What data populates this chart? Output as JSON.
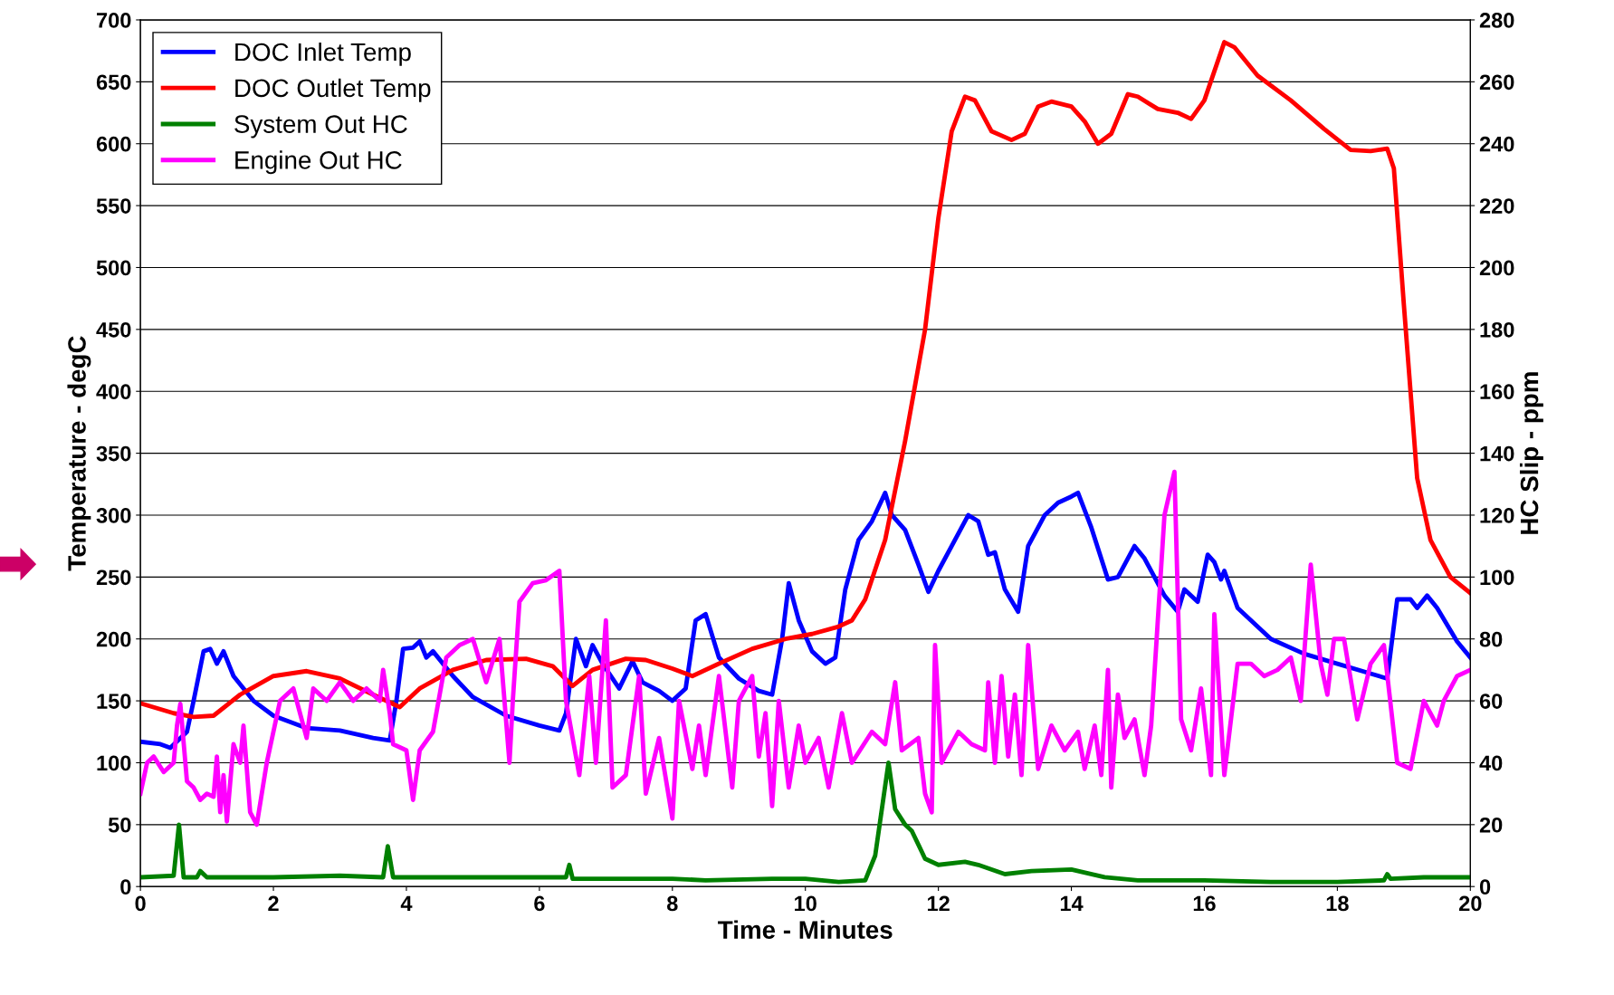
{
  "chart_data": {
    "type": "line",
    "xlabel": "Time - Minutes",
    "ylabel": "Temperature - degC",
    "y2label": "HC Slip - ppm",
    "xlim": [
      0,
      20
    ],
    "xticks": [
      0,
      2,
      4,
      6,
      8,
      10,
      12,
      14,
      16,
      18,
      20
    ],
    "ylim": [
      0,
      700
    ],
    "yticks": [
      0,
      50,
      100,
      150,
      200,
      250,
      300,
      350,
      400,
      450,
      500,
      550,
      600,
      650,
      700
    ],
    "y2lim": [
      0,
      280
    ],
    "y2ticks": [
      0,
      20,
      40,
      60,
      80,
      100,
      120,
      140,
      160,
      180,
      200,
      220,
      240,
      260,
      280
    ],
    "grid": "y",
    "legend": "top left",
    "marker": "none",
    "line_style": "solid",
    "series": [
      {
        "name": "DOC Inlet Temp",
        "color": "#0000ff",
        "x": [
          0,
          0.3,
          0.45,
          0.7,
          0.8,
          0.95,
          1.05,
          1.15,
          1.25,
          1.4,
          1.7,
          2,
          2.5,
          3,
          3.5,
          3.75,
          3.85,
          3.95,
          4.1,
          4.2,
          4.3,
          4.4,
          4.7,
          5.0,
          5.5,
          6.0,
          6.3,
          6.4,
          6.55,
          6.7,
          6.8,
          6.95,
          7.2,
          7.4,
          7.55,
          7.8,
          8.0,
          8.2,
          8.35,
          8.5,
          8.7,
          9.0,
          9.3,
          9.5,
          9.65,
          9.75,
          9.9,
          10.1,
          10.3,
          10.45,
          10.6,
          10.8,
          11.0,
          11.2,
          11.3,
          11.5,
          11.7,
          11.85,
          12.0,
          12.2,
          12.45,
          12.6,
          12.75,
          12.85,
          13.0,
          13.2,
          13.35,
          13.6,
          13.8,
          14.0,
          14.1,
          14.3,
          14.55,
          14.7,
          14.95,
          15.1,
          15.4,
          15.6,
          15.7,
          15.9,
          16.05,
          16.15,
          16.25,
          16.3,
          16.5,
          17.0,
          17.5,
          18.0,
          18.5,
          18.75,
          18.9,
          19.1,
          19.2,
          19.35,
          19.5,
          19.8,
          20
        ],
        "values": [
          117,
          115,
          112,
          125,
          150,
          190,
          192,
          180,
          190,
          170,
          150,
          138,
          128,
          126,
          120,
          118,
          150,
          192,
          193,
          198,
          185,
          190,
          170,
          153,
          138,
          130,
          126,
          140,
          200,
          178,
          195,
          180,
          160,
          182,
          165,
          158,
          150,
          160,
          215,
          220,
          185,
          168,
          158,
          155,
          200,
          245,
          215,
          190,
          180,
          185,
          240,
          280,
          295,
          318,
          300,
          288,
          260,
          238,
          255,
          275,
          300,
          295,
          268,
          270,
          240,
          222,
          275,
          300,
          310,
          315,
          318,
          290,
          248,
          250,
          275,
          265,
          235,
          222,
          240,
          230,
          268,
          262,
          248,
          255,
          225,
          200,
          188,
          180,
          172,
          168,
          232,
          232,
          225,
          235,
          225,
          198,
          185
        ]
      },
      {
        "name": "DOC Outlet Temp",
        "color": "#ff0000",
        "x": [
          0,
          0.5,
          0.8,
          1.1,
          1.5,
          2,
          2.5,
          3,
          3.5,
          3.9,
          4.2,
          4.7,
          5.2,
          5.8,
          6.2,
          6.5,
          6.8,
          7.3,
          7.6,
          8,
          8.3,
          8.7,
          9.2,
          9.7,
          10.1,
          10.5,
          10.7,
          10.9,
          11.2,
          11.5,
          11.8,
          12.0,
          12.2,
          12.4,
          12.55,
          12.8,
          13.1,
          13.3,
          13.5,
          13.7,
          14.0,
          14.2,
          14.4,
          14.6,
          14.85,
          15.0,
          15.3,
          15.6,
          15.8,
          16.0,
          16.3,
          16.45,
          16.8,
          17.3,
          17.8,
          18.2,
          18.5,
          18.75,
          18.85,
          19.0,
          19.2,
          19.4,
          19.7,
          20
        ],
        "values": [
          148,
          140,
          137,
          138,
          155,
          170,
          174,
          168,
          155,
          145,
          160,
          175,
          183,
          184,
          178,
          162,
          175,
          184,
          183,
          176,
          170,
          180,
          192,
          200,
          204,
          210,
          215,
          232,
          280,
          360,
          450,
          540,
          610,
          638,
          635,
          610,
          603,
          608,
          630,
          634,
          630,
          618,
          600,
          608,
          640,
          638,
          628,
          625,
          620,
          635,
          682,
          678,
          655,
          635,
          612,
          595,
          594,
          596,
          580,
          470,
          330,
          280,
          250,
          237
        ]
      },
      {
        "name": "System Out HC",
        "color": "#008000",
        "axis": "y2",
        "x": [
          0,
          0.5,
          0.58,
          0.65,
          0.85,
          0.9,
          1,
          2,
          3,
          3.65,
          3.72,
          3.8,
          4,
          5,
          6,
          6.4,
          6.45,
          6.5,
          8,
          8.5,
          9.5,
          10,
          10.5,
          10.9,
          11.05,
          11.25,
          11.35,
          11.5,
          11.6,
          11.8,
          12,
          12.4,
          12.6,
          13,
          13.4,
          14,
          14.5,
          15,
          16,
          17,
          18,
          18.7,
          18.75,
          18.8,
          19.3,
          20
        ],
        "values": [
          3,
          3.5,
          20,
          3,
          3,
          5,
          3,
          3,
          3.5,
          3,
          13,
          3,
          3,
          3,
          3,
          3,
          7,
          2.5,
          2.5,
          2,
          2.5,
          2.5,
          1.5,
          2,
          10,
          40,
          25,
          20,
          18,
          9,
          7,
          8,
          7,
          4,
          5,
          5.5,
          3,
          2,
          2,
          1.5,
          1.5,
          2,
          4,
          2.5,
          3,
          3
        ]
      },
      {
        "name": "Engine Out HC",
        "color": "#ff00ff",
        "axis": "y2",
        "x": [
          0,
          0.1,
          0.2,
          0.35,
          0.5,
          0.55,
          0.6,
          0.7,
          0.8,
          0.9,
          1.0,
          1.1,
          1.15,
          1.2,
          1.25,
          1.3,
          1.4,
          1.5,
          1.55,
          1.65,
          1.75,
          1.9,
          2.1,
          2.3,
          2.5,
          2.6,
          2.8,
          3.0,
          3.2,
          3.4,
          3.6,
          3.65,
          3.75,
          3.8,
          4.0,
          4.1,
          4.2,
          4.4,
          4.6,
          4.8,
          5.0,
          5.2,
          5.4,
          5.55,
          5.6,
          5.7,
          5.9,
          6.1,
          6.3,
          6.4,
          6.6,
          6.75,
          6.85,
          7.0,
          7.1,
          7.3,
          7.5,
          7.6,
          7.8,
          8.0,
          8.1,
          8.3,
          8.4,
          8.5,
          8.7,
          8.9,
          9.0,
          9.2,
          9.3,
          9.4,
          9.5,
          9.6,
          9.75,
          9.9,
          10.0,
          10.2,
          10.35,
          10.55,
          10.7,
          11.0,
          11.2,
          11.35,
          11.45,
          11.7,
          11.8,
          11.9,
          11.95,
          12.05,
          12.3,
          12.5,
          12.7,
          12.75,
          12.85,
          12.95,
          13.05,
          13.15,
          13.25,
          13.35,
          13.5,
          13.7,
          13.9,
          14.1,
          14.2,
          14.35,
          14.45,
          14.55,
          14.6,
          14.7,
          14.8,
          14.95,
          15.1,
          15.2,
          15.4,
          15.55,
          15.65,
          15.8,
          15.95,
          16.1,
          16.15,
          16.3,
          16.5,
          16.7,
          16.9,
          17.1,
          17.3,
          17.45,
          17.6,
          17.75,
          17.85,
          17.95,
          18.1,
          18.3,
          18.5,
          18.7,
          18.9,
          19.1,
          19.3,
          19.5,
          19.6,
          19.8,
          20
        ],
        "values": [
          30,
          40,
          42,
          37,
          40,
          52,
          59,
          34,
          32,
          28,
          30,
          29,
          42,
          24,
          36,
          21,
          46,
          40,
          52,
          24,
          20,
          40,
          60,
          64,
          48,
          64,
          60,
          66,
          60,
          64,
          60,
          70,
          56,
          46,
          44,
          28,
          44,
          50,
          74,
          78,
          80,
          66,
          80,
          40,
          60,
          92,
          98,
          99,
          102,
          60,
          36,
          68,
          40,
          86,
          32,
          36,
          68,
          30,
          48,
          22,
          60,
          38,
          52,
          36,
          68,
          32,
          60,
          68,
          42,
          56,
          26,
          60,
          32,
          52,
          40,
          48,
          32,
          56,
          40,
          50,
          46,
          66,
          44,
          48,
          30,
          24,
          78,
          40,
          50,
          46,
          44,
          66,
          40,
          68,
          42,
          62,
          36,
          78,
          38,
          52,
          44,
          50,
          38,
          52,
          36,
          70,
          32,
          62,
          48,
          54,
          36,
          52,
          120,
          134,
          54,
          44,
          64,
          36,
          88,
          36,
          72,
          72,
          68,
          70,
          74,
          60,
          104,
          72,
          62,
          80,
          80,
          54,
          72,
          78,
          40,
          38,
          60,
          52,
          60,
          68,
          70
        ]
      }
    ]
  }
}
